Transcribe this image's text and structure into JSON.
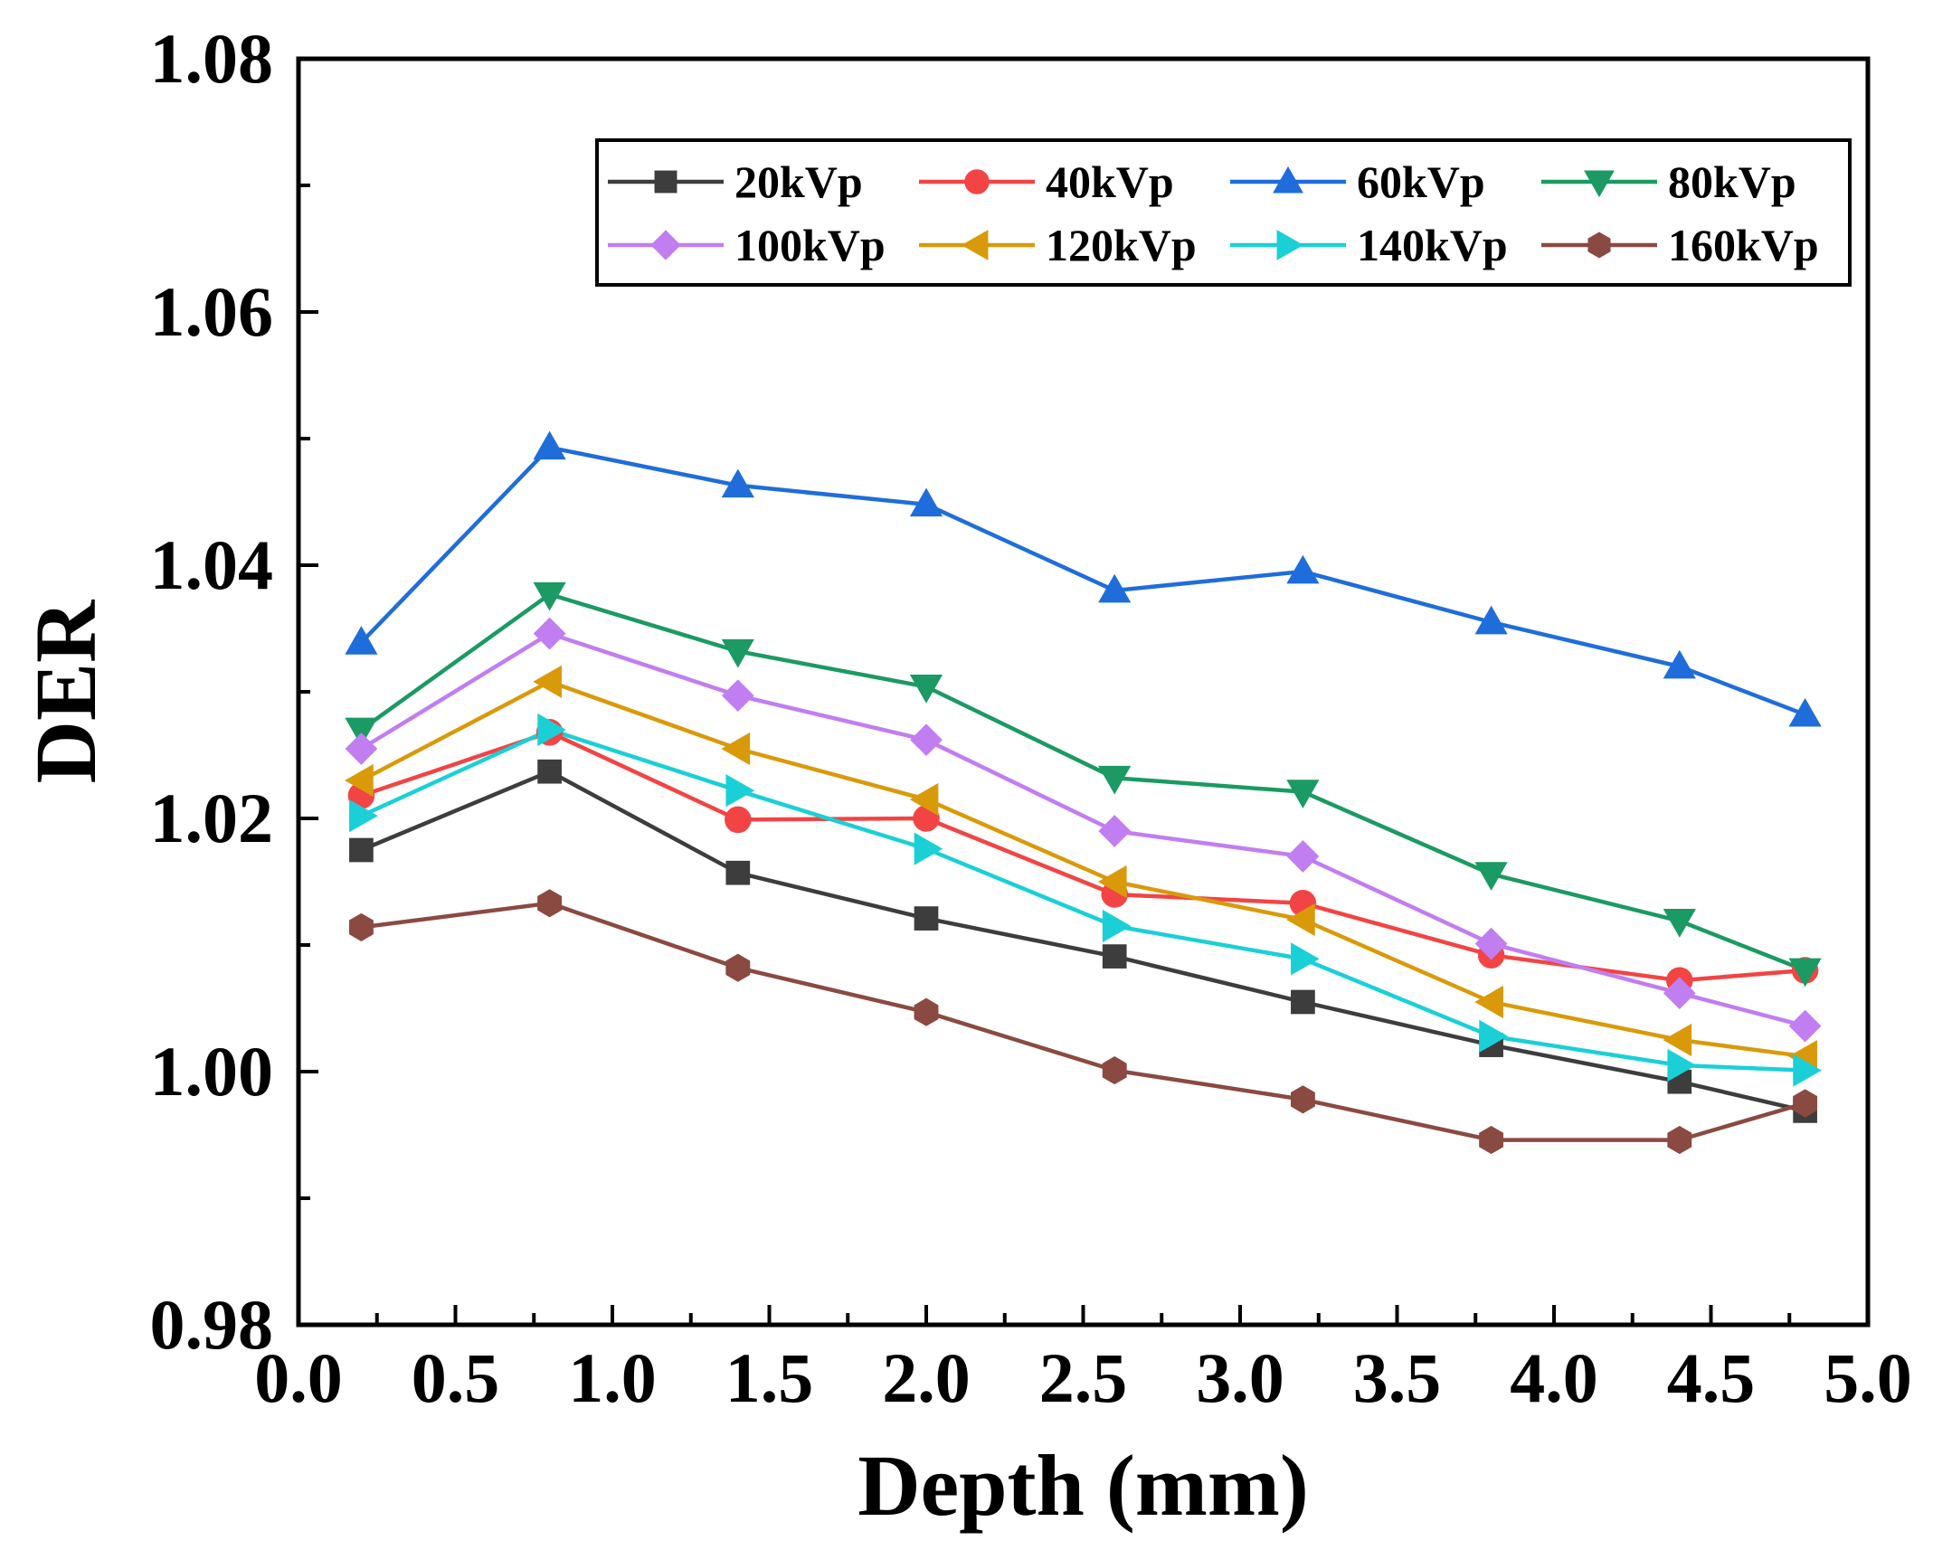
{
  "chart_data": {
    "type": "line",
    "title": "",
    "xlabel": "Depth (mm)",
    "ylabel": "DER",
    "xlim": [
      0.0,
      5.0
    ],
    "ylim": [
      0.98,
      1.08
    ],
    "xticks": [
      0.0,
      0.5,
      1.0,
      1.5,
      2.0,
      2.5,
      3.0,
      3.5,
      4.0,
      4.5,
      5.0
    ],
    "xtick_labels": [
      "0.0",
      "0.5",
      "1.0",
      "1.5",
      "2.0",
      "2.5",
      "3.0",
      "3.5",
      "4.0",
      "4.5",
      "5.0"
    ],
    "yticks": [
      0.98,
      1.0,
      1.02,
      1.04,
      1.06,
      1.08
    ],
    "ytick_labels": [
      "0.98",
      "1.00",
      "1.02",
      "1.04",
      "1.06",
      "1.08"
    ],
    "grid": false,
    "legend_position": "top-right",
    "x": [
      0.2,
      0.8,
      1.4,
      2.0,
      2.6,
      3.2,
      3.8,
      4.4,
      4.8
    ],
    "series": [
      {
        "name": "20kVp",
        "color": "#3d3d3d",
        "marker": "square",
        "values": [
          1.0175,
          1.0237,
          1.0157,
          1.0121,
          1.0091,
          1.0055,
          1.0021,
          0.9992,
          0.9969
        ]
      },
      {
        "name": "40kVp",
        "color": "#f24444",
        "marker": "circle",
        "values": [
          1.0218,
          1.0268,
          1.0199,
          1.02,
          1.014,
          1.0133,
          1.0092,
          1.0072,
          1.008
        ]
      },
      {
        "name": "60kVp",
        "color": "#1f6ddb",
        "marker": "triangle-up",
        "values": [
          1.0339,
          1.0493,
          1.0463,
          1.0448,
          1.038,
          1.0395,
          1.0355,
          1.032,
          1.0282
        ]
      },
      {
        "name": "80kVp",
        "color": "#1b9a63",
        "marker": "triangle-down",
        "values": [
          1.027,
          1.0377,
          1.0332,
          1.0304,
          1.0232,
          1.0221,
          1.0156,
          1.0119,
          1.008
        ]
      },
      {
        "name": "100kVp",
        "color": "#c07ef0",
        "marker": "diamond",
        "values": [
          1.0255,
          1.0346,
          1.0297,
          1.0262,
          1.019,
          1.017,
          1.0101,
          1.0062,
          1.0036
        ]
      },
      {
        "name": "120kVp",
        "color": "#d99a0a",
        "marker": "triangle-left",
        "values": [
          1.023,
          1.0308,
          1.0255,
          1.0215,
          1.015,
          1.012,
          1.0055,
          1.0025,
          1.0012
        ]
      },
      {
        "name": "140kVp",
        "color": "#1ad0d6",
        "marker": "triangle-right",
        "values": [
          1.0202,
          1.027,
          1.0222,
          1.0176,
          1.0115,
          1.0089,
          1.0028,
          1.0005,
          1.0001
        ]
      },
      {
        "name": "160kVp",
        "color": "#8a4a42",
        "marker": "hexagon",
        "values": [
          1.0114,
          1.0133,
          1.0082,
          1.0047,
          1.0001,
          0.9978,
          0.9946,
          0.9946,
          0.9975
        ]
      }
    ]
  }
}
